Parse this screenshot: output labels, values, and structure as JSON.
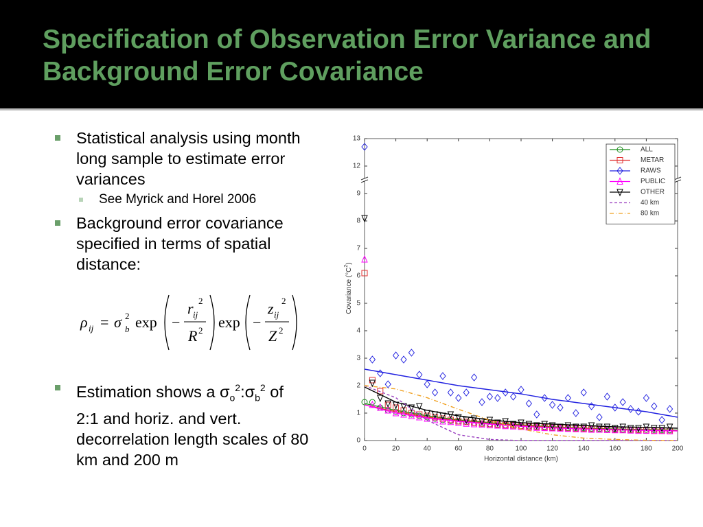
{
  "slide": {
    "title": "Specification of Observation Error Variance and Background Error Covariance",
    "bullets": [
      {
        "text": "Statistical analysis using month long sample to estimate error variances",
        "sub": [
          "See Myrick and Horel 2006"
        ]
      },
      {
        "text": "Background error covariance specified in terms of spatial distance:"
      },
      {
        "parts": [
          "Estimation shows a σ",
          "o",
          "2",
          ":σ",
          "b",
          "2",
          " of 2:1 and horiz. and vert. decorrelation length scales of 80 km and 200 m"
        ]
      }
    ],
    "formula": [
      "ρ",
      "ij",
      "=",
      "σ",
      "2",
      "b",
      "exp",
      "−",
      "r",
      "ij",
      "2",
      "R",
      "2",
      "exp",
      "−",
      "z",
      "ij",
      "2",
      "Z",
      "2"
    ]
  },
  "chart_data": {
    "type": "scatter",
    "xlabel": "Horizontal distance (km)",
    "ylabel": [
      "Covariance (°C",
      "2",
      ")"
    ],
    "xlim": [
      0,
      200
    ],
    "xticks": [
      0,
      20,
      40,
      60,
      80,
      100,
      120,
      140,
      160,
      180,
      200
    ],
    "ylim": [
      0,
      13
    ],
    "yticks": [
      0,
      1,
      2,
      3,
      4,
      5,
      6,
      7,
      8,
      9,
      12,
      13
    ],
    "y_break": [
      9,
      12
    ],
    "legend": "upper right",
    "x": [
      0,
      5,
      10,
      15,
      20,
      25,
      30,
      35,
      40,
      45,
      50,
      55,
      60,
      65,
      70,
      75,
      80,
      85,
      90,
      95,
      100,
      105,
      110,
      115,
      120,
      125,
      130,
      135,
      140,
      145,
      150,
      155,
      160,
      165,
      170,
      175,
      180,
      185,
      190,
      195
    ],
    "fit_x": [
      0,
      20,
      40,
      60,
      80,
      100,
      120,
      140,
      160,
      180,
      200
    ],
    "series": [
      {
        "name": "ALL",
        "color": "#1a8c1a",
        "marker": "circle",
        "values": [
          1.4,
          1.4,
          1.2,
          1.1,
          1.05,
          1.0,
          0.95,
          0.9,
          0.85,
          0.8,
          0.75,
          0.72,
          0.7,
          0.68,
          0.65,
          0.62,
          0.6,
          0.58,
          0.56,
          0.55,
          0.53,
          0.52,
          0.5,
          0.5,
          0.48,
          0.47,
          0.46,
          0.45,
          0.45,
          0.44,
          0.43,
          0.42,
          0.42,
          0.41,
          0.4,
          0.4,
          0.4,
          0.39,
          0.38,
          0.38
        ],
        "fit": [
          1.35,
          1.1,
          0.9,
          0.75,
          0.65,
          0.57,
          0.5,
          0.45,
          0.42,
          0.4,
          0.38
        ]
      },
      {
        "name": "METAR",
        "color": "#e03030",
        "marker": "square",
        "values": [
          6.1,
          2.2,
          1.8,
          1.3,
          1.2,
          1.1,
          1.0,
          0.95,
          0.9,
          0.85,
          0.8,
          0.75,
          0.7,
          0.68,
          0.65,
          0.62,
          0.6,
          0.58,
          0.56,
          0.55,
          0.53,
          0.52,
          0.5,
          0.48,
          0.47,
          0.46,
          0.45,
          0.44,
          0.43,
          0.42,
          0.41,
          0.4,
          0.4,
          0.39,
          0.38,
          0.38,
          0.37,
          0.36,
          0.36,
          0.35
        ],
        "fit": [
          1.3,
          1.05,
          0.85,
          0.72,
          0.62,
          0.55,
          0.48,
          0.44,
          0.4,
          0.38,
          0.36
        ]
      },
      {
        "name": "RAWS",
        "color": "#2020e0",
        "marker": "diamond",
        "values": [
          12.7,
          2.95,
          2.45,
          2.05,
          3.1,
          2.95,
          3.2,
          2.4,
          2.05,
          1.75,
          2.35,
          1.75,
          1.55,
          1.75,
          2.3,
          1.4,
          1.6,
          1.55,
          1.75,
          1.6,
          1.85,
          1.35,
          0.95,
          1.55,
          1.3,
          1.2,
          1.55,
          1.0,
          1.75,
          1.25,
          0.85,
          1.6,
          1.2,
          1.4,
          1.15,
          1.05,
          1.55,
          1.25,
          0.75,
          1.15
        ],
        "fit": [
          2.6,
          2.4,
          2.2,
          2.0,
          1.85,
          1.7,
          1.5,
          1.35,
          1.2,
          1.05,
          0.85
        ]
      },
      {
        "name": "PUBLIC",
        "color": "#ff00ff",
        "marker": "triangle-up",
        "values": [
          6.6,
          1.3,
          1.2,
          1.1,
          1.0,
          0.95,
          0.9,
          0.85,
          0.8,
          0.75,
          0.7,
          0.68,
          0.65,
          0.62,
          0.6,
          0.58,
          0.56,
          0.55,
          0.53,
          0.52,
          0.5,
          0.48,
          0.47,
          0.46,
          0.45,
          0.44,
          0.43,
          0.42,
          0.41,
          0.4,
          0.4,
          0.39,
          0.38,
          0.38,
          0.37,
          0.36,
          0.36,
          0.35,
          0.35,
          0.34
        ],
        "fit": [
          1.3,
          1.0,
          0.82,
          0.7,
          0.6,
          0.52,
          0.46,
          0.42,
          0.39,
          0.37,
          0.35
        ]
      },
      {
        "name": "OTHER",
        "color": "#000000",
        "marker": "triangle-down",
        "values": [
          8.1,
          2.1,
          1.55,
          1.35,
          1.3,
          1.25,
          1.2,
          1.25,
          1.0,
          0.95,
          0.9,
          0.95,
          0.85,
          0.75,
          0.8,
          0.7,
          0.75,
          0.65,
          0.7,
          0.6,
          0.65,
          0.6,
          0.55,
          0.6,
          0.55,
          0.5,
          0.55,
          0.5,
          0.5,
          0.55,
          0.5,
          0.5,
          0.45,
          0.5,
          0.45,
          0.45,
          0.5,
          0.45,
          0.45,
          0.5
        ],
        "fit": [
          1.95,
          1.4,
          1.1,
          0.9,
          0.75,
          0.65,
          0.6,
          0.55,
          0.5,
          0.48,
          0.45
        ]
      },
      {
        "name": "40 km",
        "color": "#9a40c0",
        "dash": "4 3",
        "fit": [
          2,
          1.56,
          0.74,
          0.21,
          0.04,
          0,
          0,
          0,
          0,
          0,
          0
        ]
      },
      {
        "name": "80 km",
        "color": "#f0a020",
        "dash": "6 3 1 3",
        "fit": [
          2,
          1.88,
          1.56,
          1.14,
          0.74,
          0.42,
          0.21,
          0.09,
          0.04,
          0.01,
          0
        ]
      }
    ]
  }
}
